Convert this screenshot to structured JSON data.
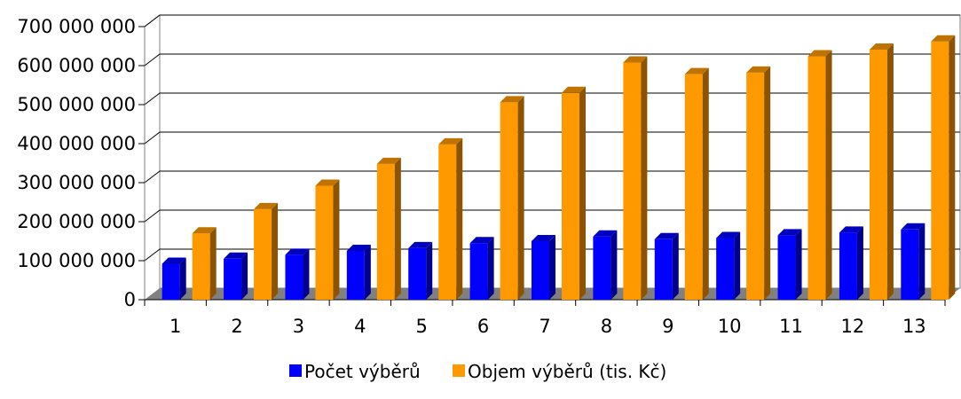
{
  "chart_data": {
    "type": "bar",
    "categories": [
      "1",
      "2",
      "3",
      "4",
      "5",
      "6",
      "7",
      "8",
      "9",
      "10",
      "11",
      "12",
      "13"
    ],
    "series": [
      {
        "name": "Počet výběrů",
        "color": "#0000FF",
        "values": [
          92000000,
          105000000,
          115000000,
          125000000,
          132000000,
          145000000,
          150000000,
          162000000,
          155000000,
          158000000,
          165000000,
          172000000,
          180000000
        ]
      },
      {
        "name": "Objem výběrů (tis. Kč)",
        "color": "#FF9900",
        "values": [
          170000000,
          232000000,
          292000000,
          348000000,
          398000000,
          506000000,
          530000000,
          608000000,
          578000000,
          582000000,
          624000000,
          641000000,
          662000000
        ]
      }
    ],
    "ylim": [
      0,
      700000000
    ],
    "yticks": [
      "0",
      "100 000 000",
      "200 000 000",
      "300 000 000",
      "400 000 000",
      "500 000 000",
      "600 000 000",
      "700 000 000"
    ],
    "xlabel": "",
    "ylabel": "",
    "grid": true,
    "style": "3d",
    "legend_position": "bottom"
  }
}
